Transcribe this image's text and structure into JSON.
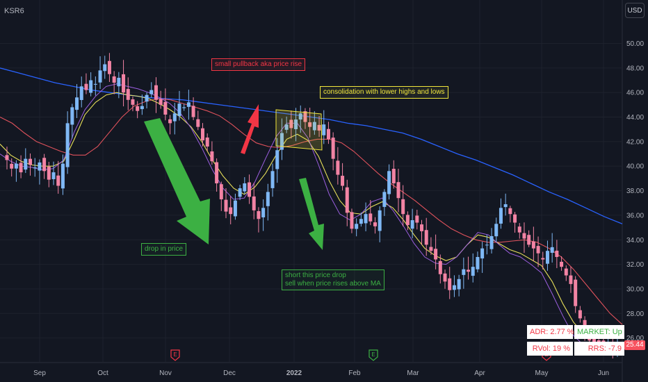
{
  "symbol": "KSR6",
  "currency_button": "USD",
  "last_price": "25.44",
  "annotations": {
    "pullback": "small pullback aka price rise",
    "consolidation": "consolidation with lower highs and lows",
    "drop": "drop in price",
    "short_line1": "short this price drop",
    "short_line2": "sell when price rises above MA"
  },
  "stats": {
    "adr": "ADR: 2.77 %",
    "market": "MARKET: Up",
    "rvol": "RVol: 19 %",
    "rrs": "RRS: -7.9"
  },
  "earnings_marker": "E",
  "colors": {
    "background": "#131722",
    "up": "#7fb8f5",
    "down": "#f283a4",
    "ma_blue": "#2962ff",
    "ma_red": "#e0525c",
    "ma_yellow": "#e8e05a",
    "ma_purple": "#9c5fe0",
    "arrow_green": "#3cb043",
    "arrow_red": "#f23645"
  },
  "chart_data": {
    "type": "candlestick",
    "y_ticks": [
      "50.00",
      "48.00",
      "46.00",
      "44.00",
      "42.00",
      "40.00",
      "38.00",
      "36.00",
      "34.00",
      "32.00",
      "30.00",
      "28.00",
      "26.00"
    ],
    "ylim": [
      24.0,
      51.5
    ],
    "x_ticks": [
      "Sep",
      "Oct",
      "Nov",
      "Dec",
      "2022",
      "Feb",
      "Mar",
      "Apr",
      "May",
      "Jun"
    ],
    "series": [
      {
        "name": "close",
        "values": [
          40.5,
          39.8,
          40.2,
          39.5,
          40.6,
          40.1,
          39.9,
          40.3,
          39.6,
          38.9,
          39.5,
          38.4,
          40.2,
          43.5,
          44.8,
          45.6,
          46.5,
          46.2,
          47.0,
          46.7,
          47.8,
          48.3,
          47.5,
          46.8,
          47.2,
          46.0,
          45.4,
          45.0,
          44.5,
          44.9,
          45.8,
          46.2,
          45.4,
          45.0,
          44.2,
          43.5,
          44.3,
          45.1,
          44.8,
          45.2,
          44.0,
          43.2,
          42.1,
          41.6,
          40.4,
          38.6,
          37.3,
          36.3,
          36.1,
          37.2,
          38.2,
          38.6,
          37.5,
          36.4,
          35.7,
          36.6,
          37.9,
          39.6,
          41.3,
          42.7,
          43.4,
          43.1,
          43.8,
          44.3,
          43.6,
          43.2,
          43.6,
          42.9,
          43.4,
          42.2,
          40.6,
          39.3,
          38.4,
          36.2,
          34.9,
          35.3,
          35.7,
          36.1,
          35.5,
          35.1,
          36.4,
          37.9,
          39.6,
          38.6,
          37.4,
          36.1,
          35.2,
          35.6,
          35.4,
          34.7,
          33.6,
          33.1,
          32.4,
          31.2,
          30.6,
          29.9,
          30.3,
          30.8,
          31.6,
          31.4,
          31.8,
          32.6,
          33.3,
          33.6,
          34.3,
          35.3,
          36.6,
          36.9,
          36.1,
          35.4,
          34.6,
          34.1,
          33.6,
          33.3,
          32.9,
          32.4,
          33.1,
          33.4,
          32.6,
          31.8,
          31.1,
          30.4,
          28.6,
          27.6,
          26.3,
          25.8,
          25.5,
          25.6,
          25.3,
          25.7,
          25.4,
          25.44
        ]
      },
      {
        "name": "MA blue",
        "values": [
          48.0,
          47.6,
          47.2,
          46.8,
          46.5,
          46.2,
          46.0,
          45.8,
          45.6,
          45.5,
          45.4,
          45.2,
          45.0,
          44.8,
          44.6,
          44.4,
          44.2,
          44.0,
          43.8,
          43.5,
          43.3,
          43.0,
          42.7,
          42.2,
          41.6,
          41.0,
          40.5,
          39.9,
          39.3,
          38.6,
          37.9,
          37.3,
          36.6,
          35.9,
          35.3
        ]
      },
      {
        "name": "MA red",
        "values": [
          44.0,
          43.5,
          42.7,
          42.0,
          41.6,
          41.2,
          40.9,
          40.9,
          41.6,
          42.8,
          44.0,
          44.9,
          45.3,
          45.5,
          45.4,
          45.1,
          44.8,
          44.5,
          44.1,
          43.4,
          42.6,
          41.9,
          41.6,
          41.5,
          41.7,
          42.0,
          42.2,
          42.2,
          41.9,
          41.2,
          40.3,
          39.4,
          38.6,
          37.9,
          37.2,
          36.4,
          35.6,
          34.9,
          34.4,
          34.0,
          33.8,
          33.8,
          33.9,
          34.0,
          33.8,
          33.3,
          32.6,
          31.6,
          30.4,
          29.2,
          28.0,
          27.1
        ]
      },
      {
        "name": "MA yellow",
        "values": [
          41.8,
          40.9,
          40.4,
          40.1,
          40.0,
          40.0,
          40.4,
          42.2,
          44.2,
          45.2,
          45.8,
          46.0,
          45.8,
          45.7,
          45.5,
          45.1,
          44.6,
          44.0,
          43.2,
          42.0,
          40.5,
          39.2,
          38.2,
          37.7,
          38.3,
          39.4,
          40.9,
          42.2,
          42.6,
          42.1,
          40.8,
          38.8,
          37.2,
          36.2,
          36.1,
          36.7,
          37.1,
          36.6,
          35.6,
          34.4,
          33.3,
          32.7,
          32.3,
          32.6,
          33.6,
          34.4,
          34.2,
          33.7,
          33.2,
          32.9,
          32.4,
          31.9,
          30.6,
          28.8,
          27.3,
          26.3
        ]
      },
      {
        "name": "MA purple",
        "values": [
          41.0,
          40.4,
          40.0,
          39.9,
          39.7,
          39.8,
          40.5,
          42.8,
          44.6,
          45.7,
          46.5,
          46.7,
          46.5,
          46.3,
          46.0,
          45.6,
          45.1,
          44.3,
          43.1,
          41.5,
          39.7,
          38.2,
          37.3,
          37.4,
          38.7,
          40.6,
          42.4,
          43.5,
          43.5,
          42.3,
          40.1,
          37.7,
          36.1,
          35.6,
          36.1,
          37.1,
          37.4,
          36.4,
          35.1,
          33.7,
          32.6,
          32.1,
          32.0,
          32.6,
          33.6,
          34.6,
          34.4,
          33.6,
          32.9,
          32.6,
          32.0,
          31.3,
          29.6,
          27.8,
          26.2,
          25.4
        ]
      }
    ]
  }
}
